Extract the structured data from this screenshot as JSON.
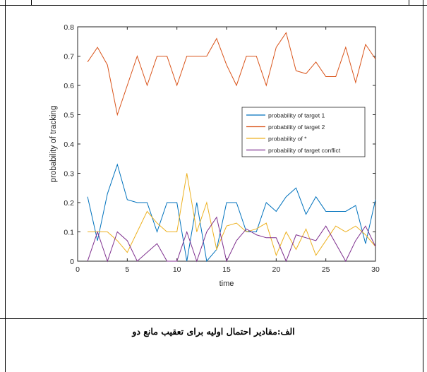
{
  "caption": "الف:مقادیر احتمال اولیه برای تعقیب مانع دو",
  "chart_data": {
    "type": "line",
    "title": "",
    "xlabel": "time",
    "ylabel": "probability of tracking",
    "xlim": [
      0,
      30
    ],
    "ylim": [
      0,
      0.8
    ],
    "xticks": [
      "0",
      "5",
      "10",
      "15",
      "20",
      "25",
      "30"
    ],
    "yticks": [
      "0",
      "0.1",
      "0.2",
      "0.3",
      "0.4",
      "0.5",
      "0.6",
      "0.7",
      "0.8"
    ],
    "grid": false,
    "legend_position": "right, mid-height",
    "x": [
      1,
      2,
      3,
      4,
      5,
      6,
      7,
      8,
      9,
      10,
      11,
      12,
      13,
      14,
      15,
      16,
      17,
      18,
      19,
      20,
      21,
      22,
      23,
      24,
      25,
      26,
      27,
      28,
      29,
      30
    ],
    "series": [
      {
        "name": "probability of target 1",
        "color": "#0072BD",
        "values": [
          0.22,
          0.07,
          0.23,
          0.33,
          0.21,
          0.2,
          0.2,
          0.1,
          0.2,
          0.2,
          0.0,
          0.2,
          0.0,
          0.04,
          0.2,
          0.2,
          0.1,
          0.1,
          0.2,
          0.17,
          0.22,
          0.25,
          0.16,
          0.22,
          0.17,
          0.17,
          0.17,
          0.19,
          0.06,
          0.21
        ]
      },
      {
        "name": "probability of target 2",
        "color": "#D95319",
        "values": [
          0.68,
          0.73,
          0.67,
          0.5,
          0.6,
          0.7,
          0.6,
          0.7,
          0.7,
          0.6,
          0.7,
          0.7,
          0.7,
          0.76,
          0.67,
          0.6,
          0.7,
          0.7,
          0.6,
          0.73,
          0.78,
          0.65,
          0.64,
          0.68,
          0.63,
          0.63,
          0.73,
          0.61,
          0.74,
          0.69
        ]
      },
      {
        "name": "probability of *",
        "color": "#EDB120",
        "values": [
          0.1,
          0.1,
          0.1,
          0.07,
          0.03,
          0.1,
          0.17,
          0.13,
          0.1,
          0.1,
          0.3,
          0.1,
          0.2,
          0.04,
          0.12,
          0.13,
          0.1,
          0.11,
          0.13,
          0.02,
          0.1,
          0.04,
          0.11,
          0.02,
          0.07,
          0.12,
          0.1,
          0.12,
          0.09,
          0.05
        ]
      },
      {
        "name": "probability of target conflict",
        "color": "#7E2F8E",
        "values": [
          0.0,
          0.1,
          0.0,
          0.1,
          0.07,
          0.0,
          0.03,
          0.06,
          0.0,
          0.0,
          0.1,
          0.0,
          0.1,
          0.15,
          0.0,
          0.07,
          0.11,
          0.09,
          0.08,
          0.08,
          0.0,
          0.09,
          0.08,
          0.07,
          0.12,
          0.06,
          0.0,
          0.07,
          0.12,
          0.05
        ]
      }
    ]
  }
}
